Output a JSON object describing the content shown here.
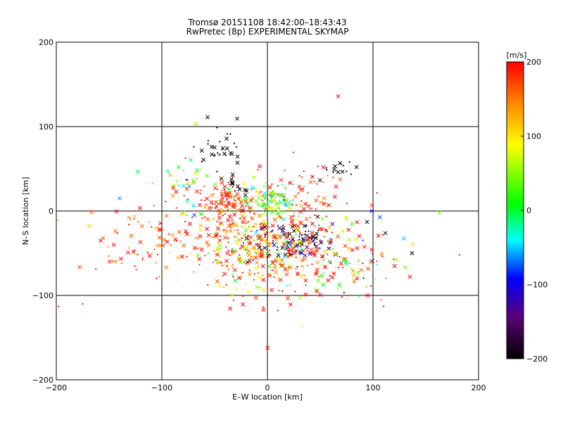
{
  "chart_data": {
    "type": "scatter",
    "title": "Tromsø 20151108 18:42:00–18:43:43",
    "subtitle": "RwPretec (8p) EXPERIMENTAL SKYMAP",
    "xlabel": "E–W location [km]",
    "ylabel": "N–S location [km]",
    "xlim": [
      -200,
      200
    ],
    "ylim": [
      -200,
      200
    ],
    "x_ticks": [
      -200,
      -100,
      0,
      100,
      200
    ],
    "y_ticks": [
      -200,
      -100,
      0,
      100,
      200
    ],
    "grid": true,
    "colorbar": {
      "label": "[m/s]",
      "min": -200,
      "max": 200,
      "ticks": [
        200,
        100,
        0,
        -100,
        -200
      ],
      "colormap": "black-purple-blue-cyan-green-yellow-orange-red"
    },
    "markers": {
      "cross": "x",
      "dot": "+"
    },
    "clusters": [
      {
        "cx": -10,
        "cy": -30,
        "sx": 45,
        "sy": 25,
        "n": 420,
        "v": 150,
        "vs": 80
      },
      {
        "cx": -40,
        "cy": 10,
        "sx": 12,
        "sy": 10,
        "n": 80,
        "v": 190,
        "vs": 20
      },
      {
        "cx": 5,
        "cy": 10,
        "sx": 12,
        "sy": 10,
        "n": 90,
        "v": 30,
        "vs": 60
      },
      {
        "cx": 25,
        "cy": -35,
        "sx": 20,
        "sy": 12,
        "n": 110,
        "v": -170,
        "vs": 50
      },
      {
        "cx": -45,
        "cy": 75,
        "sx": 10,
        "sy": 15,
        "n": 35,
        "v": -200,
        "vs": 10
      },
      {
        "cx": 70,
        "cy": 50,
        "sx": 10,
        "sy": 10,
        "n": 15,
        "v": -200,
        "vs": 10
      },
      {
        "cx": -120,
        "cy": -35,
        "sx": 25,
        "sy": 20,
        "n": 60,
        "v": 180,
        "vs": 40
      },
      {
        "cx": -80,
        "cy": 35,
        "sx": 20,
        "sy": 15,
        "n": 40,
        "v": 40,
        "vs": 100
      },
      {
        "cx": 60,
        "cy": -60,
        "sx": 35,
        "sy": 25,
        "n": 120,
        "v": 100,
        "vs": 150
      },
      {
        "cx": -30,
        "cy": 30,
        "sx": 8,
        "sy": 6,
        "n": 12,
        "v": -200,
        "vs": 10
      },
      {
        "cx": 0,
        "cy": -60,
        "sx": 30,
        "sy": 30,
        "n": 100,
        "v": 180,
        "vs": 60
      },
      {
        "cx": 30,
        "cy": 30,
        "sx": 30,
        "sy": 15,
        "n": 40,
        "v": 190,
        "vs": 30
      }
    ],
    "extra_points": [
      {
        "x": 67,
        "y": 136,
        "v": 200,
        "m": "cross"
      },
      {
        "x": -68,
        "y": 103,
        "v": 50,
        "m": "cross"
      },
      {
        "x": 163,
        "y": -2,
        "v": 40,
        "m": "cross"
      },
      {
        "x": 137,
        "y": -50,
        "v": -200,
        "m": "cross"
      },
      {
        "x": -175,
        "y": -110,
        "v": 200,
        "m": "dot"
      },
      {
        "x": -198,
        "y": -113,
        "v": 200,
        "m": "dot"
      },
      {
        "x": 0,
        "y": -162,
        "v": 200,
        "m": "cross"
      },
      {
        "x": 10,
        "y": -118,
        "v": 200,
        "m": "dot"
      },
      {
        "x": 33,
        "y": -136,
        "v": 60,
        "m": "dot"
      },
      {
        "x": 182,
        "y": -52,
        "v": 200,
        "m": "dot"
      },
      {
        "x": -140,
        "y": 15,
        "v": -60,
        "m": "cross"
      },
      {
        "x": 135,
        "y": -78,
        "v": 200,
        "m": "cross"
      },
      {
        "x": 95,
        "y": -100,
        "v": 200,
        "m": "cross"
      },
      {
        "x": -158,
        "y": -35,
        "v": 200,
        "m": "cross"
      },
      {
        "x": -105,
        "y": -80,
        "v": 200,
        "m": "dot"
      },
      {
        "x": 110,
        "y": -113,
        "v": 200,
        "m": "dot"
      }
    ]
  }
}
